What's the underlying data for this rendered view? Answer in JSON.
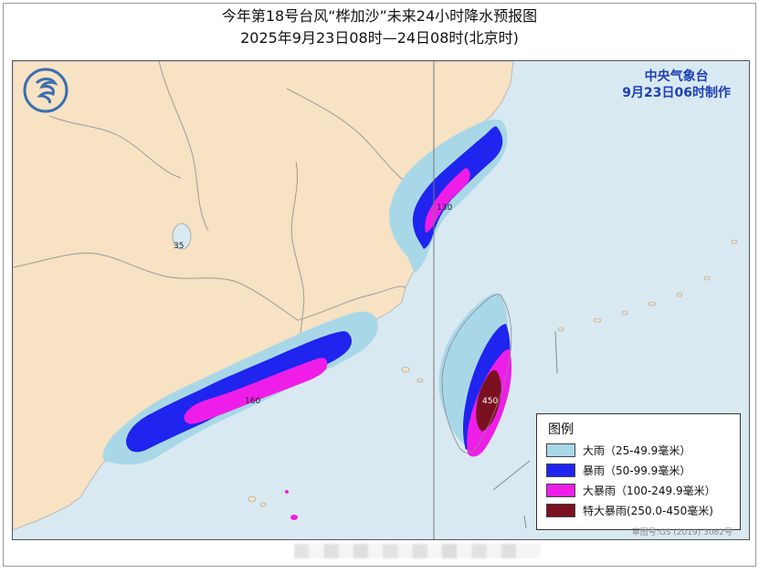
{
  "title": {
    "line1": "今年第18号台风“桦加沙”未来24小时降水预报图",
    "line2": "2025年9月23日08时—24日08时(北京时)"
  },
  "agency": {
    "name": "中央气象台",
    "issued": "9月23日06时制作"
  },
  "legend": {
    "title": "图例",
    "items": [
      {
        "label": "大雨（25-49.9毫米）",
        "color": "#a8d8e8"
      },
      {
        "label": "暴雨（50-99.9毫米）",
        "color": "#1f24ee"
      },
      {
        "label": "大暴雨（100-249.9毫米）",
        "color": "#ee1ee8"
      },
      {
        "label": "特大暴雨(250.0-450毫米)",
        "color": "#7a1020"
      }
    ]
  },
  "map_labels": {
    "lake": "35",
    "north_max": "130",
    "guangdong_max": "160",
    "taiwan_max": "450"
  },
  "approval": "审图号:GS (2019) 3082号",
  "colors": {
    "land": "#f7e2c3",
    "sea": "#d9e9f2",
    "border": "#8f8f8f"
  }
}
